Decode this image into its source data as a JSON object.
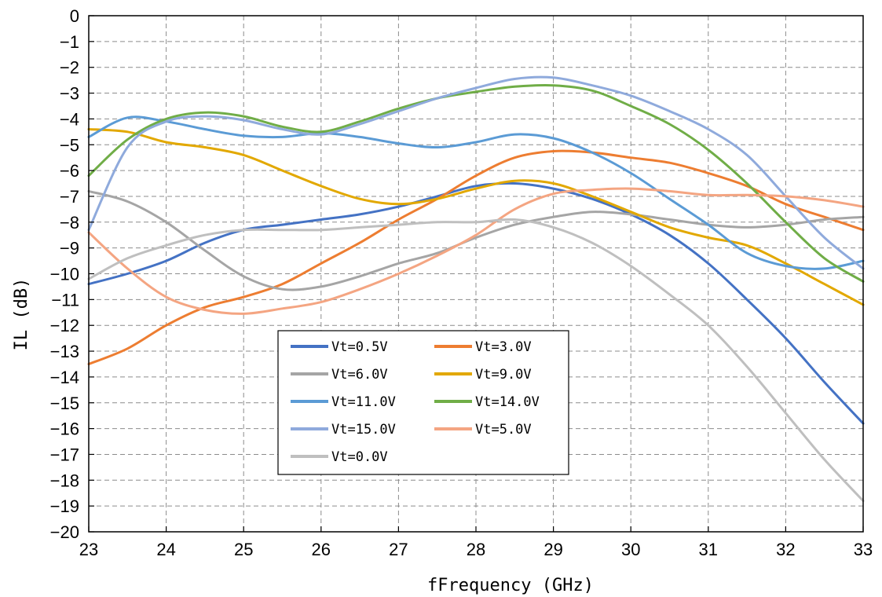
{
  "chart_data": {
    "type": "line",
    "xlabel": "fFrequency (GHz)",
    "ylabel": "IL (dB)",
    "xlim": [
      23,
      33
    ],
    "ylim": [
      -20,
      0
    ],
    "x_ticks": [
      23,
      24,
      25,
      26,
      27,
      28,
      29,
      30,
      31,
      32,
      33
    ],
    "y_ticks": [
      0,
      -1,
      -2,
      -3,
      -4,
      -5,
      -6,
      -7,
      -8,
      -9,
      -10,
      -11,
      -12,
      -13,
      -14,
      -15,
      -16,
      -17,
      -18,
      -19,
      -20
    ],
    "grid": true,
    "legend_position": "lower-left interior, two columns",
    "x": [
      23,
      23.5,
      24,
      24.5,
      25,
      25.5,
      26,
      26.5,
      27,
      27.5,
      28,
      28.5,
      29,
      29.5,
      30,
      30.5,
      31,
      31.5,
      32,
      32.5,
      33
    ],
    "series": [
      {
        "name": "Vt=0.5V",
        "color": "#4472C4",
        "values": [
          -10.4,
          -10.0,
          -9.5,
          -8.8,
          -8.3,
          -8.1,
          -7.9,
          -7.7,
          -7.4,
          -7.0,
          -6.6,
          -6.5,
          -6.7,
          -7.1,
          -7.7,
          -8.5,
          -9.6,
          -11.0,
          -12.5,
          -14.2,
          -15.8
        ]
      },
      {
        "name": "Vt=3.0V",
        "color": "#ED7D31",
        "values": [
          -13.5,
          -12.9,
          -12.0,
          -11.3,
          -10.9,
          -10.4,
          -9.6,
          -8.8,
          -7.9,
          -7.1,
          -6.2,
          -5.5,
          -5.25,
          -5.3,
          -5.5,
          -5.7,
          -6.1,
          -6.6,
          -7.3,
          -7.8,
          -8.3
        ]
      },
      {
        "name": "Vt=6.0V",
        "color": "#A5A5A5",
        "values": [
          -6.8,
          -7.2,
          -8.0,
          -9.1,
          -10.1,
          -10.6,
          -10.5,
          -10.1,
          -9.6,
          -9.2,
          -8.6,
          -8.1,
          -7.8,
          -7.6,
          -7.7,
          -7.9,
          -8.1,
          -8.2,
          -8.1,
          -7.9,
          -7.8
        ]
      },
      {
        "name": "Vt=9.0V",
        "color": "#E2A800",
        "values": [
          -4.4,
          -4.5,
          -4.9,
          -5.1,
          -5.4,
          -6.0,
          -6.6,
          -7.1,
          -7.3,
          -7.1,
          -6.7,
          -6.4,
          -6.5,
          -7.0,
          -7.6,
          -8.2,
          -8.6,
          -8.9,
          -9.6,
          -10.4,
          -11.2
        ]
      },
      {
        "name": "Vt=11.0V",
        "color": "#5B9BD5",
        "values": [
          -4.7,
          -3.95,
          -4.1,
          -4.4,
          -4.65,
          -4.7,
          -4.55,
          -4.7,
          -4.95,
          -5.1,
          -4.9,
          -4.6,
          -4.75,
          -5.3,
          -6.1,
          -7.1,
          -8.1,
          -9.2,
          -9.7,
          -9.8,
          -9.5
        ]
      },
      {
        "name": "Vt=14.0V",
        "color": "#70AD47",
        "values": [
          -6.2,
          -4.8,
          -4.0,
          -3.75,
          -3.9,
          -4.3,
          -4.5,
          -4.1,
          -3.6,
          -3.2,
          -2.95,
          -2.75,
          -2.7,
          -2.9,
          -3.5,
          -4.2,
          -5.2,
          -6.5,
          -8.0,
          -9.4,
          -10.3
        ]
      },
      {
        "name": "Vt=15.0V",
        "color": "#8FAADC",
        "values": [
          -8.3,
          -5.1,
          -4.1,
          -3.9,
          -4.05,
          -4.4,
          -4.6,
          -4.2,
          -3.7,
          -3.2,
          -2.8,
          -2.45,
          -2.4,
          -2.7,
          -3.1,
          -3.7,
          -4.4,
          -5.4,
          -7.0,
          -8.6,
          -9.8
        ]
      },
      {
        "name": "Vt=5.0V",
        "color": "#F4A582",
        "values": [
          -8.4,
          -9.8,
          -10.9,
          -11.4,
          -11.55,
          -11.35,
          -11.1,
          -10.6,
          -10.0,
          -9.3,
          -8.5,
          -7.5,
          -6.9,
          -6.75,
          -6.7,
          -6.8,
          -6.95,
          -6.95,
          -7.0,
          -7.15,
          -7.4
        ]
      },
      {
        "name": "Vt=0.0V",
        "color": "#BFBFBF",
        "values": [
          -10.2,
          -9.4,
          -8.9,
          -8.5,
          -8.3,
          -8.3,
          -8.3,
          -8.2,
          -8.1,
          -8.0,
          -8.0,
          -7.9,
          -8.2,
          -8.8,
          -9.7,
          -10.8,
          -12.0,
          -13.6,
          -15.4,
          -17.2,
          -18.8
        ]
      }
    ]
  }
}
